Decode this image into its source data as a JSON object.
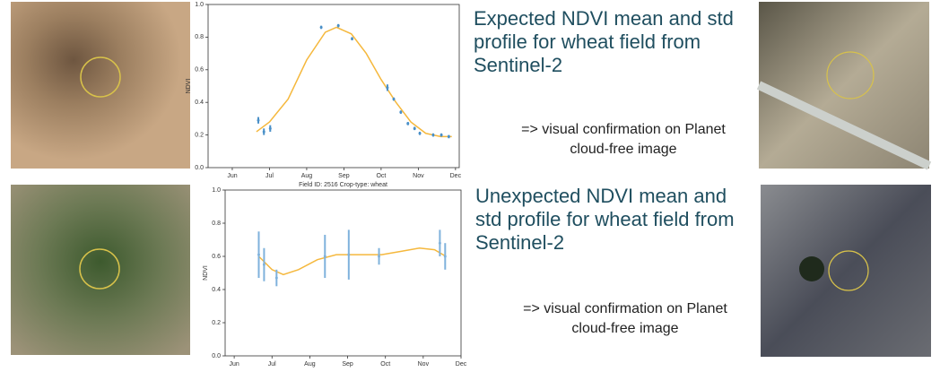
{
  "chart_data": [
    {
      "type": "errorbar",
      "ylabel": "NDVI",
      "xlim": [
        5.35,
        12.1
      ],
      "xticks": [
        {
          "value": 6,
          "label": "Jun"
        },
        {
          "value": 7,
          "label": "Jul"
        },
        {
          "value": 8,
          "label": "Aug"
        },
        {
          "value": 9,
          "label": "Sep"
        },
        {
          "value": 10,
          "label": "Oct"
        },
        {
          "value": 11,
          "label": "Nov"
        },
        {
          "value": 12,
          "label": "Dec"
        }
      ],
      "ylim": [
        0,
        1
      ],
      "yticks": [
        {
          "value": 0,
          "label": "0.0"
        },
        {
          "value": 0.2,
          "label": "0.2"
        },
        {
          "value": 0.4,
          "label": "0.4"
        },
        {
          "value": 0.6,
          "label": "0.6"
        },
        {
          "value": 0.8,
          "label": "0.8"
        },
        {
          "value": 1,
          "label": "1.0"
        }
      ],
      "points": {
        "color": "#4a90c8",
        "x": [
          6.7,
          6.85,
          7.02,
          8.39,
          8.85,
          9.22,
          10.17,
          10.34,
          10.53,
          10.72,
          10.9,
          11.04,
          11.4,
          11.62,
          11.82
        ],
        "values": [
          0.29,
          0.22,
          0.24,
          0.86,
          0.87,
          0.79,
          0.49,
          0.42,
          0.34,
          0.27,
          0.24,
          0.21,
          0.2,
          0.2,
          0.19
        ],
        "errors": [
          0.02,
          0.02,
          0.02,
          0.01,
          0.01,
          0.01,
          0.02,
          0.01,
          0.01,
          0.01,
          0.01,
          0.01,
          0.01,
          0.01,
          0.01
        ]
      },
      "fit": {
        "color": "#f5b83d",
        "x": [
          6.65,
          7.0,
          7.5,
          8.0,
          8.5,
          8.8,
          9.2,
          9.6,
          10.0,
          10.4,
          10.8,
          11.2,
          11.6,
          11.9
        ],
        "values": [
          0.22,
          0.28,
          0.42,
          0.66,
          0.83,
          0.86,
          0.82,
          0.7,
          0.54,
          0.4,
          0.28,
          0.21,
          0.19,
          0.19
        ]
      }
    },
    {
      "type": "errorbar",
      "title": "Field ID: 2516    Crop-type: wheat",
      "ylabel": "NDVI",
      "xlim": [
        5.76,
        12.0
      ],
      "xticks": [
        {
          "value": 6,
          "label": "Jun"
        },
        {
          "value": 7,
          "label": "Jul"
        },
        {
          "value": 8,
          "label": "Aug"
        },
        {
          "value": 9,
          "label": "Sep"
        },
        {
          "value": 10,
          "label": "Oct"
        },
        {
          "value": 11,
          "label": "Nov"
        },
        {
          "value": 12,
          "label": "Dec"
        }
      ],
      "ylim": [
        0,
        1
      ],
      "yticks": [
        {
          "value": 0,
          "label": "0.0"
        },
        {
          "value": 0.2,
          "label": "0.2"
        },
        {
          "value": 0.4,
          "label": "0.4"
        },
        {
          "value": 0.6,
          "label": "0.6"
        },
        {
          "value": 0.8,
          "label": "0.8"
        },
        {
          "value": 1,
          "label": "1.0"
        }
      ],
      "points": {
        "color": "#7fb2dc",
        "x": [
          6.65,
          6.79,
          7.12,
          8.4,
          9.03,
          9.83,
          11.44,
          11.58
        ],
        "values": [
          0.61,
          0.55,
          0.47,
          0.6,
          0.61,
          0.6,
          0.68,
          0.6
        ],
        "errors": [
          0.14,
          0.1,
          0.05,
          0.13,
          0.15,
          0.05,
          0.08,
          0.08
        ]
      },
      "fit": {
        "color": "#f5b83d",
        "x": [
          6.65,
          7.0,
          7.3,
          7.7,
          8.2,
          8.7,
          9.3,
          9.9,
          10.4,
          10.9,
          11.3,
          11.6
        ],
        "values": [
          0.6,
          0.52,
          0.49,
          0.52,
          0.58,
          0.61,
          0.61,
          0.61,
          0.63,
          0.65,
          0.64,
          0.6
        ]
      }
    }
  ],
  "captions": [
    {
      "heading": "Expected NDVI mean and std profile for wheat field from Sentinel-2",
      "note": "=> visual confirmation on Planet cloud-free image"
    },
    {
      "heading": "Unexpected NDVI mean and std profile for wheat field from Sentinel-2",
      "note": "=> visual confirmation on Planet cloud-free image"
    }
  ]
}
